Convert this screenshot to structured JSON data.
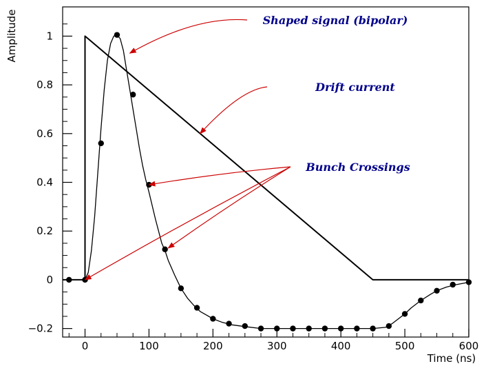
{
  "chart_data": {
    "type": "line",
    "xlabel": "Time (ns)",
    "ylabel": "Amplitude",
    "xlim": [
      -35,
      600
    ],
    "ylim": [
      -0.235,
      1.12
    ],
    "x_ticks": [
      0,
      100,
      200,
      300,
      400,
      500,
      600
    ],
    "y_ticks": [
      -0.2,
      0,
      0.2,
      0.4,
      0.6,
      0.8,
      1
    ],
    "series": [
      {
        "style": "line",
        "points": [
          [
            -35,
            0
          ],
          [
            0,
            0
          ],
          [
            0,
            1
          ],
          [
            450,
            0
          ],
          [
            600,
            0
          ]
        ]
      },
      {
        "style": "line-step",
        "points": [
          [
            -35,
            0
          ],
          [
            0,
            0
          ],
          [
            5,
            0.03
          ],
          [
            10,
            0.12
          ],
          [
            15,
            0.26
          ],
          [
            20,
            0.44
          ],
          [
            25,
            0.62
          ],
          [
            30,
            0.78
          ],
          [
            35,
            0.9
          ],
          [
            40,
            0.97
          ],
          [
            45,
            1.0
          ],
          [
            50,
            1.005
          ],
          [
            55,
            0.99
          ],
          [
            60,
            0.94
          ],
          [
            65,
            0.86
          ],
          [
            70,
            0.78
          ],
          [
            75,
            0.7
          ],
          [
            80,
            0.62
          ],
          [
            85,
            0.54
          ],
          [
            90,
            0.47
          ],
          [
            95,
            0.41
          ],
          [
            100,
            0.36
          ],
          [
            110,
            0.25
          ],
          [
            120,
            0.15
          ],
          [
            125,
            0.12
          ],
          [
            130,
            0.08
          ],
          [
            140,
            0.02
          ],
          [
            150,
            -0.035
          ],
          [
            160,
            -0.075
          ],
          [
            170,
            -0.105
          ],
          [
            180,
            -0.13
          ],
          [
            190,
            -0.145
          ],
          [
            200,
            -0.16
          ],
          [
            215,
            -0.175
          ],
          [
            230,
            -0.185
          ],
          [
            250,
            -0.192
          ],
          [
            275,
            -0.2
          ],
          [
            300,
            -0.2
          ],
          [
            350,
            -0.2
          ],
          [
            400,
            -0.2
          ],
          [
            450,
            -0.2
          ],
          [
            470,
            -0.195
          ],
          [
            480,
            -0.18
          ],
          [
            490,
            -0.16
          ],
          [
            500,
            -0.14
          ],
          [
            510,
            -0.115
          ],
          [
            525,
            -0.085
          ],
          [
            540,
            -0.06
          ],
          [
            550,
            -0.045
          ],
          [
            565,
            -0.03
          ],
          [
            580,
            -0.02
          ],
          [
            600,
            -0.01
          ]
        ]
      },
      {
        "style": "markers",
        "points": [
          [
            -25,
            0
          ],
          [
            0,
            0
          ],
          [
            25,
            0.56
          ],
          [
            50,
            1.005
          ],
          [
            75,
            0.76
          ],
          [
            100,
            0.39
          ],
          [
            125,
            0.125
          ],
          [
            150,
            -0.035
          ],
          [
            175,
            -0.115
          ],
          [
            200,
            -0.16
          ],
          [
            225,
            -0.18
          ],
          [
            250,
            -0.19
          ],
          [
            275,
            -0.2
          ],
          [
            300,
            -0.2
          ],
          [
            325,
            -0.2
          ],
          [
            350,
            -0.2
          ],
          [
            375,
            -0.2
          ],
          [
            400,
            -0.2
          ],
          [
            425,
            -0.2
          ],
          [
            450,
            -0.2
          ],
          [
            475,
            -0.19
          ],
          [
            500,
            -0.14
          ],
          [
            525,
            -0.085
          ],
          [
            550,
            -0.045
          ],
          [
            575,
            -0.02
          ],
          [
            600,
            -0.01
          ]
        ]
      }
    ],
    "annotations": [
      {
        "text": "Shaped signal (bipolar)",
        "target": [
          70,
          0.93
        ]
      },
      {
        "text": "Drift current",
        "target": [
          180,
          0.6
        ]
      },
      {
        "text": "Bunch Crossings",
        "targets": [
          [
            0,
            0
          ],
          [
            100,
            0.39
          ],
          [
            130,
            0.13
          ]
        ]
      }
    ]
  }
}
